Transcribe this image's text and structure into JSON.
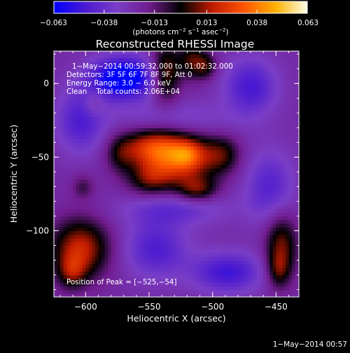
{
  "chart_data": {
    "type": "heatmap",
    "title": "Reconstructed RHESSI Image",
    "xlabel": "Heliocentric X (arcsec)",
    "ylabel": "Heliocentric Y (arcsec)",
    "xlim": [
      -625,
      -432
    ],
    "ylim": [
      -145,
      22
    ],
    "xticks": [
      {
        "value": -600,
        "label": "−600"
      },
      {
        "value": -550,
        "label": "−550"
      },
      {
        "value": -500,
        "label": "−500"
      },
      {
        "value": -450,
        "label": "−450"
      }
    ],
    "yticks": [
      {
        "value": 0,
        "label": "0"
      },
      {
        "value": -50,
        "label": "−50"
      },
      {
        "value": -100,
        "label": "−100"
      }
    ],
    "annotations": [
      "1−May−2014 00:59:32.000 to 01:02:32.000",
      "Detectors: 3F 5F 6F 7F 8F 9F, Att 0",
      "Energy Range: 3.0 − 6.0 keV",
      "Clean    Total counts: 2.06E+04"
    ],
    "peak_label": "Position of Peak = [−525,−54]",
    "peak": [
      -525,
      -54
    ],
    "colorbar": {
      "range": [
        -0.063,
        0.063
      ],
      "ticks": [
        {
          "value": -0.063,
          "label": "−0.063"
        },
        {
          "value": -0.038,
          "label": "−0.038"
        },
        {
          "value": -0.013,
          "label": "−0.013"
        },
        {
          "value": 0.013,
          "label": "0.013"
        },
        {
          "value": 0.038,
          "label": "0.038"
        },
        {
          "value": 0.063,
          "label": "0.063"
        }
      ],
      "units_prefix": "(photons cm",
      "units_sup1": "−2",
      "units_mid": " s",
      "units_sup2": "−1",
      "units_mid2": " asec",
      "units_sup3": "−2",
      "units_suffix": ")",
      "colors": [
        "#0000ff",
        "#4b1ad0",
        "#7a3ec6",
        "#701c8e",
        "#000000",
        "#c01b00",
        "#ff5500",
        "#ffb100",
        "#ffffe8"
      ]
    },
    "sources": [
      {
        "x": -527,
        "y": -50,
        "sx": 20,
        "sy": 13,
        "amp": 0.05
      },
      {
        "x": -520,
        "y": -48,
        "sx": 8,
        "sy": 6,
        "amp": 0.016
      },
      {
        "x": -551,
        "y": -42,
        "sx": 16,
        "sy": 9,
        "amp": 0.03
      },
      {
        "x": -550,
        "y": -65,
        "sx": 12,
        "sy": 8,
        "amp": 0.022
      },
      {
        "x": -512,
        "y": -72,
        "sx": 11,
        "sy": 6,
        "amp": 0.026
      },
      {
        "x": -492,
        "y": -48,
        "sx": 10,
        "sy": 9,
        "amp": 0.02
      },
      {
        "x": -573,
        "y": -48,
        "sx": 8,
        "sy": 9,
        "amp": 0.016
      },
      {
        "x": -537,
        "y": 7,
        "sx": 8,
        "sy": 14,
        "amp": 0.034
      },
      {
        "x": -516,
        "y": 16,
        "sx": 8,
        "sy": 9,
        "amp": 0.026
      },
      {
        "x": -505,
        "y": 12,
        "sx": 6,
        "sy": 6,
        "amp": 0.02
      },
      {
        "x": -604,
        "y": -112,
        "sx": 16,
        "sy": 14,
        "amp": 0.04
      },
      {
        "x": -611,
        "y": -128,
        "sx": 8,
        "sy": 8,
        "amp": 0.022
      },
      {
        "x": -446,
        "y": -110,
        "sx": 9,
        "sy": 16,
        "amp": 0.032
      },
      {
        "x": -448,
        "y": -127,
        "sx": 6,
        "sy": 8,
        "amp": 0.018
      },
      {
        "x": -602,
        "y": -70,
        "sx": 6,
        "sy": 6,
        "amp": 0.014
      },
      {
        "x": -593,
        "y": -13,
        "sx": 6,
        "sy": 6,
        "amp": 0.012
      },
      {
        "x": -570,
        "y": 4,
        "sx": 18,
        "sy": 10,
        "amp": -0.05
      },
      {
        "x": -488,
        "y": -128,
        "sx": 20,
        "sy": 10,
        "amp": -0.028
      },
      {
        "x": -470,
        "y": -2,
        "sx": 15,
        "sy": 14,
        "amp": -0.026
      },
      {
        "x": -604,
        "y": -25,
        "sx": 14,
        "sy": 16,
        "amp": -0.024
      },
      {
        "x": -545,
        "y": -112,
        "sx": 18,
        "sy": 14,
        "amp": -0.024
      },
      {
        "x": -455,
        "y": -70,
        "sx": 14,
        "sy": 18,
        "amp": -0.022
      },
      {
        "x": -530,
        "y": -85,
        "sx": 30,
        "sy": 8,
        "amp": -0.018
      },
      {
        "x": -530,
        "y": -25,
        "sx": 30,
        "sy": 9,
        "amp": -0.016
      }
    ],
    "background": -0.022
  },
  "footer_date": "1−May−2014 00:57"
}
